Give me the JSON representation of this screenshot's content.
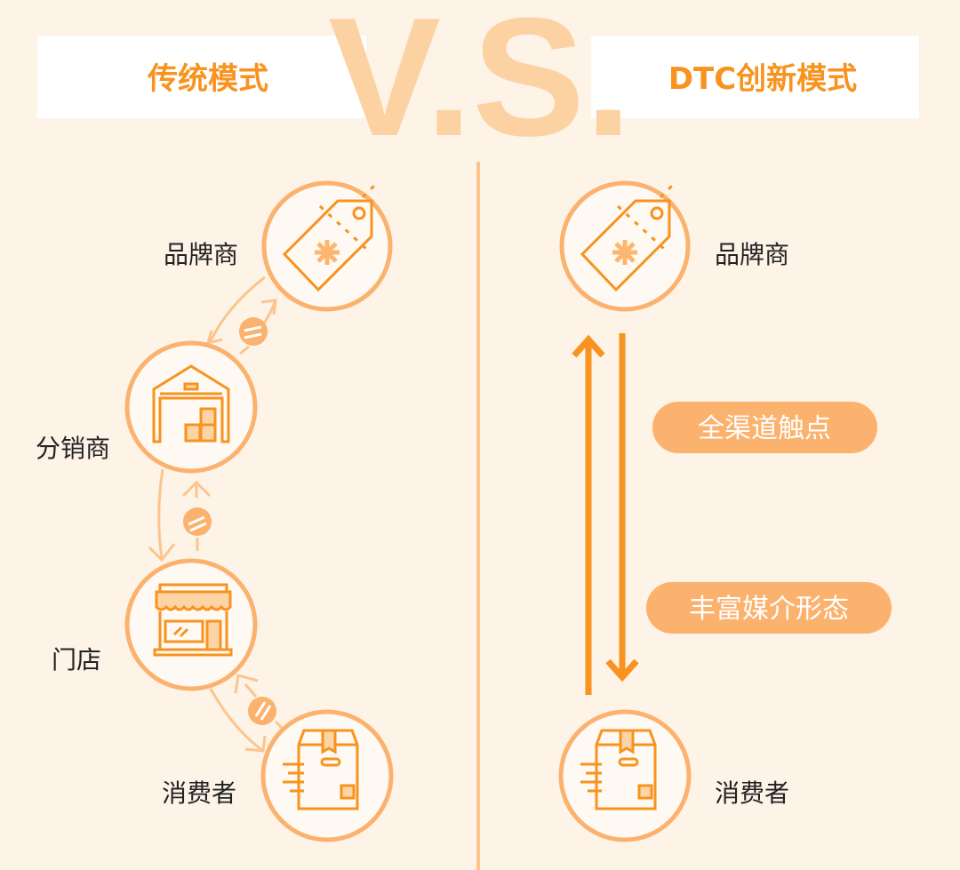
{
  "header": {
    "left_title": "传统模式",
    "vs": "V.S.",
    "right_title": "DTC创新模式"
  },
  "traditional": {
    "nodes": [
      {
        "label": "品牌商",
        "icon": "price-tag-icon"
      },
      {
        "label": "分销商",
        "icon": "warehouse-icon"
      },
      {
        "label": "门店",
        "icon": "storefront-icon"
      },
      {
        "label": "消费者",
        "icon": "package-box-icon"
      }
    ],
    "link_badge_icon": "not-equal-icon"
  },
  "dtc": {
    "nodes": [
      {
        "label": "品牌商",
        "icon": "price-tag-icon"
      },
      {
        "label": "消费者",
        "icon": "package-box-icon"
      }
    ],
    "pills": [
      "全渠道触点",
      "丰富媒介形态"
    ]
  },
  "colors": {
    "background": "#fdf3e7",
    "accent": "#f7931e",
    "ring": "#fbb26e",
    "vs": "#fdd2a3",
    "pill": "#fbb26e"
  }
}
